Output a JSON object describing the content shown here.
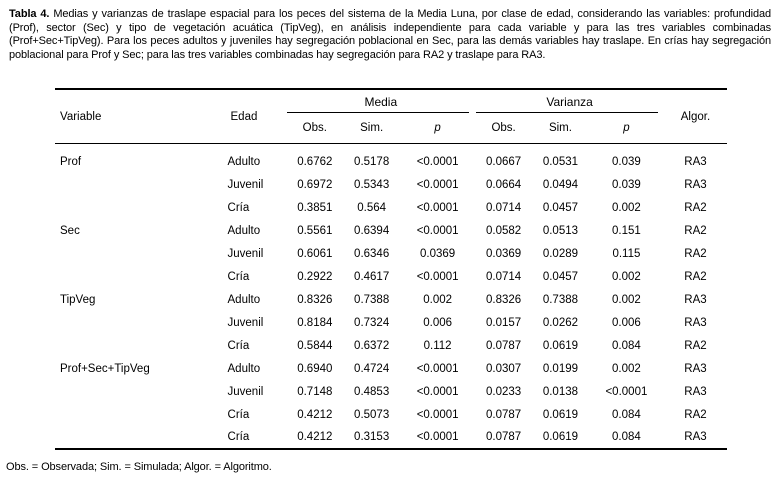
{
  "caption": {
    "label": "Tabla 4.",
    "text": "Medias y varianzas de traslape espacial para los peces del sistema de la Media Luna, por clase de edad, considerando las variables: profundidad (Prof), sector (Sec) y tipo de vegetación acuática (TipVeg), en análisis independiente para cada variable y para las tres variables combinadas (Prof+Sec+TipVeg). Para los peces adultos y juveniles hay segregación poblacional en Sec, para las demás variables hay traslape. En crías hay segregación poblacional para Prof y Sec; para las tres variables combinadas hay segregación para RA2 y traslape para RA3.",
    "full_text": "Tabla 4. Medias y varianzas de traslape espacial para los peces del sistema de la Media Luna, por clase de edad, considerando las variables: profundidad (Prof), sector (Sec) y tipo de vegetación acuática (TipVeg), en análisis independiente para cada variable y para las tres variables combinadas (Prof+Sec+TipVeg). Para los peces adultos y juveniles hay segregación poblacional en Sec, para las demás variables hay traslape. En crías hay segregación poblacional para Prof y Sec; para las tres variables combinadas hay segregación para RA2 y traslape para RA3."
  },
  "table": {
    "headers": {
      "variable": "Variable",
      "edad": "Edad",
      "media": "Media",
      "varianza": "Varianza",
      "algor": "Algor.",
      "obs": "Obs.",
      "sim": "Sim.",
      "p": "p"
    },
    "rows": [
      {
        "variable": "Prof",
        "edad": "Adulto",
        "m_obs": "0.6762",
        "m_sim": "0.5178",
        "m_p": "<0.0001",
        "v_obs": "0.0667",
        "v_sim": "0.0531",
        "v_p": "0.039",
        "algor": "RA3"
      },
      {
        "variable": "",
        "edad": "Juvenil",
        "m_obs": "0.6972",
        "m_sim": "0.5343",
        "m_p": "<0.0001",
        "v_obs": "0.0664",
        "v_sim": "0.0494",
        "v_p": "0.039",
        "algor": "RA3"
      },
      {
        "variable": "",
        "edad": "Cría",
        "m_obs": "0.3851",
        "m_sim": "0.564",
        "m_p": "<0.0001",
        "v_obs": "0.0714",
        "v_sim": "0.0457",
        "v_p": "0.002",
        "algor": "RA2"
      },
      {
        "variable": "Sec",
        "edad": "Adulto",
        "m_obs": "0.5561",
        "m_sim": "0.6394",
        "m_p": "<0.0001",
        "v_obs": "0.0582",
        "v_sim": "0.0513",
        "v_p": "0.151",
        "algor": "RA2"
      },
      {
        "variable": "",
        "edad": "Juvenil",
        "m_obs": "0.6061",
        "m_sim": "0.6346",
        "m_p": "0.0369",
        "v_obs": "0.0369",
        "v_sim": "0.0289",
        "v_p": "0.115",
        "algor": "RA2"
      },
      {
        "variable": "",
        "edad": "Cría",
        "m_obs": "0.2922",
        "m_sim": "0.4617",
        "m_p": "<0.0001",
        "v_obs": "0.0714",
        "v_sim": "0.0457",
        "v_p": "0.002",
        "algor": "RA2"
      },
      {
        "variable": "TipVeg",
        "edad": "Adulto",
        "m_obs": "0.8326",
        "m_sim": "0.7388",
        "m_p": "0.002",
        "v_obs": "0.8326",
        "v_sim": "0.7388",
        "v_p": "0.002",
        "algor": "RA3"
      },
      {
        "variable": "",
        "edad": "Juvenil",
        "m_obs": "0.8184",
        "m_sim": "0.7324",
        "m_p": "0.006",
        "v_obs": "0.0157",
        "v_sim": "0.0262",
        "v_p": "0.006",
        "algor": "RA3"
      },
      {
        "variable": "",
        "edad": "Cría",
        "m_obs": "0.5844",
        "m_sim": "0.6372",
        "m_p": "0.112",
        "v_obs": "0.0787",
        "v_sim": "0.0619",
        "v_p": "0.084",
        "algor": "RA2"
      },
      {
        "variable": "Prof+Sec+TipVeg",
        "edad": "Adulto",
        "m_obs": "0.6940",
        "m_sim": "0.4724",
        "m_p": "<0.0001",
        "v_obs": "0.0307",
        "v_sim": "0.0199",
        "v_p": "0.002",
        "algor": "RA3"
      },
      {
        "variable": "",
        "edad": "Juvenil",
        "m_obs": "0.7148",
        "m_sim": "0.4853",
        "m_p": "<0.0001",
        "v_obs": "0.0233",
        "v_sim": "0.0138",
        "v_p": "<0.0001",
        "algor": "RA3"
      },
      {
        "variable": "",
        "edad": "Cría",
        "m_obs": "0.4212",
        "m_sim": "0.5073",
        "m_p": "<0.0001",
        "v_obs": "0.0787",
        "v_sim": "0.0619",
        "v_p": "0.084",
        "algor": "RA2"
      },
      {
        "variable": "",
        "edad": "Cría",
        "m_obs": "0.4212",
        "m_sim": "0.3153",
        "m_p": "<0.0001",
        "v_obs": "0.0787",
        "v_sim": "0.0619",
        "v_p": "0.084",
        "algor": "RA3"
      }
    ]
  },
  "footnote": "Obs. = Observada; Sim. = Simulada; Algor. = Algoritmo."
}
